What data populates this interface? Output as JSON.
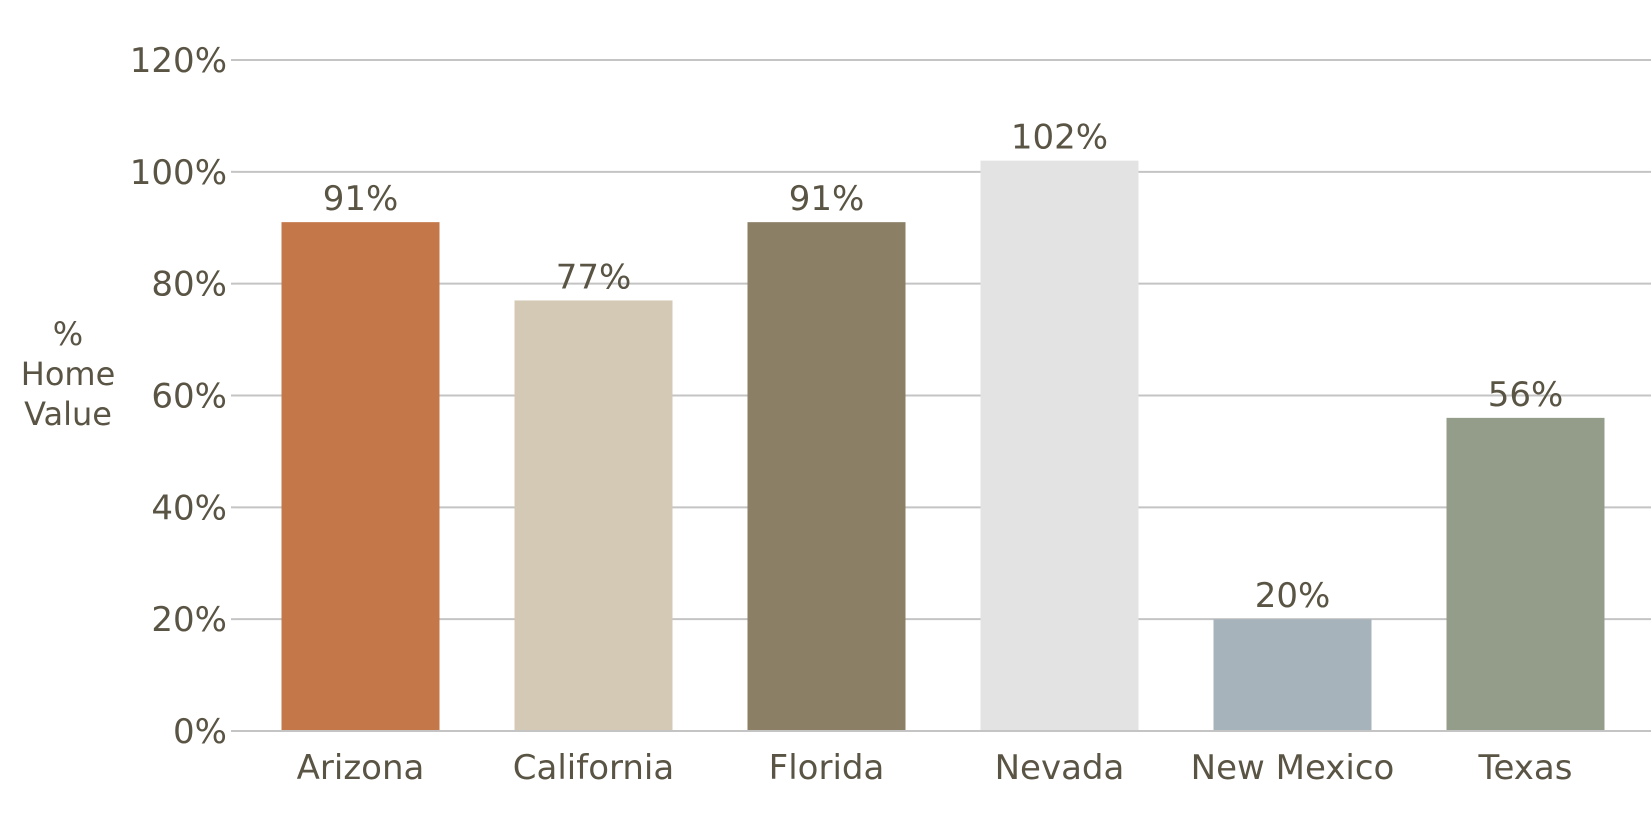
{
  "chart_data": {
    "type": "bar",
    "title": "",
    "xlabel": "",
    "ylabel_lines": [
      "%",
      "Home",
      "Value"
    ],
    "ylim": [
      0,
      120
    ],
    "yticks": [
      0,
      20,
      40,
      60,
      80,
      100,
      120
    ],
    "ytick_labels": [
      "0%",
      "20%",
      "40%",
      "60%",
      "80%",
      "100%",
      "120%"
    ],
    "categories": [
      "Arizona",
      "California",
      "Florida",
      "Nevada",
      "New Mexico",
      "Texas"
    ],
    "values": [
      91,
      77,
      91,
      102,
      20,
      56
    ],
    "value_labels": [
      "91%",
      "77%",
      "91%",
      "102%",
      "20%",
      "56%"
    ],
    "colors": [
      "#c47748",
      "#d4c9b5",
      "#8b7f66",
      "#e3e3e3",
      "#a7b3ba",
      "#949d8a"
    ],
    "grid": true,
    "legend": "none"
  }
}
